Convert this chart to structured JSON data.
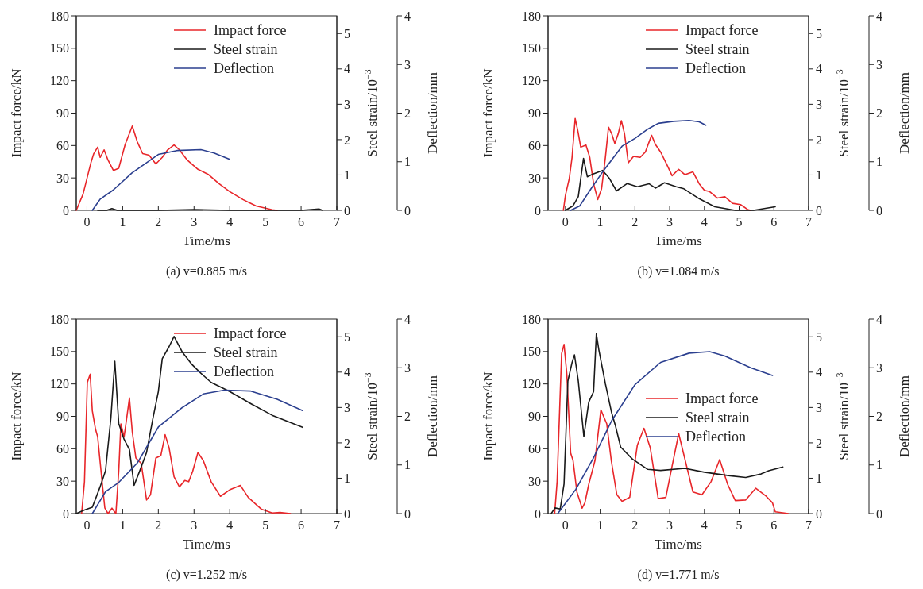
{
  "chart_data": [
    {
      "type": "line",
      "xlabel": "Time/ms",
      "ylabel": "Impact force/kN",
      "y2label": "Steel strain/10$^{−3}$",
      "y3label": "Deflection/mm",
      "xlim": [
        -0.3,
        7
      ],
      "xticks": [
        0,
        1,
        2,
        3,
        4,
        5,
        6,
        7
      ],
      "ylim": [
        0,
        180
      ],
      "yticks": [
        0,
        30,
        60,
        90,
        120,
        150,
        180
      ],
      "y2lim": [
        0,
        5.5
      ],
      "y2ticks": [
        0,
        1,
        2,
        3,
        4,
        5
      ],
      "y3lim": [
        0,
        4
      ],
      "y3ticks": [
        0,
        1,
        2,
        3,
        4
      ],
      "legend": "top right",
      "annotations": [
        "(a) v=0.885 m/s"
      ],
      "series": [
        {
          "name": "Impact force",
          "color": "#e8262a",
          "axis": "y",
          "x": [
            -0.3,
            -0.11,
            0,
            0.11,
            0.19,
            0.3,
            0.37,
            0.48,
            0.59,
            0.74,
            0.89,
            1.07,
            1.27,
            1.41,
            1.56,
            1.74,
            1.93,
            2.11,
            2.26,
            2.44,
            2.59,
            2.81,
            3.11,
            3.41,
            3.7,
            4.0,
            4.37,
            4.74,
            5.19,
            5.33
          ],
          "values": [
            0,
            15,
            29.5,
            44,
            52.5,
            58.5,
            49,
            56,
            46.5,
            37,
            39,
            61,
            78,
            63.5,
            52.5,
            51,
            43,
            49,
            56,
            60.5,
            56,
            46.5,
            38,
            33,
            24.7,
            17.4,
            10,
            4,
            0.5,
            0
          ]
        },
        {
          "name": "Steel strain",
          "color": "#1a1a1a",
          "axis": "y2",
          "x": [
            0.3,
            0.55,
            0.7,
            0.85,
            2,
            3,
            4,
            5,
            6,
            6.5,
            6.6
          ],
          "values": [
            0,
            0,
            0.05,
            0,
            0,
            0.02,
            0,
            0,
            0,
            0.04,
            0
          ]
        },
        {
          "name": "Deflection",
          "color": "#2b3f8f",
          "axis": "y3",
          "x": [
            0.15,
            0.37,
            0.74,
            1.26,
            2.0,
            2.52,
            3.19,
            3.56,
            4.0
          ],
          "values": [
            0,
            0.23,
            0.42,
            0.77,
            1.15,
            1.23,
            1.25,
            1.18,
            1.05
          ]
        }
      ]
    },
    {
      "type": "line",
      "xlabel": "Time/ms",
      "ylabel": "Impact force/kN",
      "y2label": "Steel strain/10$^{−3}$",
      "y3label": "Deflection/mm",
      "xlim": [
        -0.5,
        7
      ],
      "xticks": [
        0,
        1,
        2,
        3,
        4,
        5,
        6,
        7
      ],
      "ylim": [
        0,
        180
      ],
      "yticks": [
        0,
        30,
        60,
        90,
        120,
        150,
        180
      ],
      "y2lim": [
        0,
        5.5
      ],
      "y2ticks": [
        0,
        1,
        2,
        3,
        4,
        5
      ],
      "y3lim": [
        0,
        4
      ],
      "y3ticks": [
        0,
        1,
        2,
        3,
        4
      ],
      "legend": "top right",
      "annotations": [
        "(b) v=1.084 m/s"
      ],
      "series": [
        {
          "name": "Impact force",
          "color": "#e8262a",
          "axis": "y",
          "x": [
            -0.06,
            0,
            0.11,
            0.19,
            0.28,
            0.36,
            0.44,
            0.59,
            0.7,
            0.81,
            0.93,
            1.04,
            1.15,
            1.24,
            1.33,
            1.42,
            1.52,
            1.61,
            1.7,
            1.81,
            1.96,
            2.15,
            2.3,
            2.48,
            2.59,
            2.74,
            2.93,
            3.07,
            3.26,
            3.44,
            3.67,
            3.85,
            4.0,
            4.15,
            4.37,
            4.59,
            4.81,
            5.04,
            5.26,
            5.33
          ],
          "values": [
            0,
            14,
            29.5,
            49,
            85,
            73,
            58.5,
            60.5,
            49,
            24.7,
            10,
            20,
            49,
            77,
            71,
            62,
            71,
            83,
            71,
            44,
            50,
            49,
            54,
            69.5,
            61,
            54,
            41.6,
            32,
            38,
            33,
            35.6,
            24.7,
            18.6,
            17.4,
            11.4,
            12.6,
            6.5,
            5.3,
            0.5,
            0
          ]
        },
        {
          "name": "Steel strain",
          "color": "#1a1a1a",
          "axis": "y2",
          "x": [
            0,
            0.22,
            0.37,
            0.52,
            0.63,
            0.78,
            1.07,
            1.26,
            1.47,
            1.78,
            2.07,
            2.41,
            2.59,
            2.85,
            3.19,
            3.41,
            3.85,
            4.3,
            4.89,
            5.41,
            6.04
          ],
          "values": [
            0,
            0.13,
            0.39,
            1.47,
            0.95,
            1.02,
            1.13,
            0.91,
            0.55,
            0.76,
            0.67,
            0.75,
            0.63,
            0.78,
            0.67,
            0.61,
            0.33,
            0.1,
            0,
            0,
            0.1
          ]
        },
        {
          "name": "Deflection",
          "color": "#2b3f8f",
          "axis": "y3",
          "x": [
            0.15,
            0.41,
            0.74,
            1.11,
            1.63,
            2.0,
            2.37,
            2.67,
            3.11,
            3.56,
            3.85,
            4.04
          ],
          "values": [
            0,
            0.09,
            0.45,
            0.83,
            1.32,
            1.48,
            1.67,
            1.79,
            1.83,
            1.85,
            1.82,
            1.75
          ]
        }
      ]
    },
    {
      "type": "line",
      "xlabel": "Time/ms",
      "ylabel": "Impact force/kN",
      "y2label": "Steel strain/10$^{−3}$",
      "y3label": "Deflection/mm",
      "xlim": [
        -0.3,
        7
      ],
      "xticks": [
        0,
        1,
        2,
        3,
        4,
        5,
        6,
        7
      ],
      "ylim": [
        0,
        180
      ],
      "yticks": [
        0,
        30,
        60,
        90,
        120,
        150,
        180
      ],
      "y2lim": [
        0,
        5.5
      ],
      "y2ticks": [
        0,
        1,
        2,
        3,
        4,
        5
      ],
      "y3lim": [
        0,
        4
      ],
      "y3ticks": [
        0,
        1,
        2,
        3,
        4
      ],
      "legend": "top right",
      "annotations": [
        "(c) v=1.252 m/s"
      ],
      "series": [
        {
          "name": "Impact force",
          "color": "#e8262a",
          "axis": "y",
          "x": [
            -0.15,
            -0.07,
            0.01,
            0.09,
            0.15,
            0.24,
            0.3,
            0.41,
            0.5,
            0.59,
            0.7,
            0.81,
            0.89,
            0.95,
            1.04,
            1.11,
            1.19,
            1.27,
            1.37,
            1.52,
            1.67,
            1.78,
            1.93,
            2.07,
            2.19,
            2.3,
            2.44,
            2.59,
            2.74,
            2.85,
            2.96,
            3.11,
            3.26,
            3.48,
            3.74,
            4.0,
            4.3,
            4.52,
            4.89,
            5.19,
            5.41,
            5.7
          ],
          "values": [
            0,
            29.5,
            121.5,
            129,
            95,
            78,
            71,
            34,
            5.3,
            0,
            5,
            0,
            39,
            83,
            71,
            87.6,
            107,
            75.5,
            51.5,
            46.5,
            12.6,
            17.4,
            51.5,
            53.7,
            73,
            61,
            34,
            24.7,
            30.7,
            29.5,
            39,
            56.6,
            49,
            29.5,
            16,
            22,
            26,
            15,
            4,
            0.5,
            1,
            0
          ]
        },
        {
          "name": "Steel strain",
          "color": "#1a1a1a",
          "axis": "y2",
          "x": [
            -0.3,
            -0.07,
            0.15,
            0.37,
            0.52,
            0.67,
            0.78,
            0.89,
            1.04,
            1.19,
            1.32,
            1.48,
            1.67,
            1.85,
            2.0,
            2.11,
            2.3,
            2.44,
            2.67,
            2.93,
            3.19,
            3.48,
            4.0,
            4.59,
            5.19,
            6.04
          ],
          "values": [
            0,
            0.1,
            0.18,
            0.76,
            1.21,
            2.7,
            4.31,
            2.55,
            2.1,
            1.81,
            0.8,
            1.21,
            1.73,
            2.7,
            3.45,
            4.38,
            4.72,
            5.01,
            4.57,
            4.23,
            3.97,
            3.71,
            3.45,
            3.11,
            2.78,
            2.44
          ]
        },
        {
          "name": "Deflection",
          "color": "#2b3f8f",
          "axis": "y3",
          "x": [
            0.15,
            0.52,
            0.89,
            1.41,
            2.0,
            2.67,
            3.26,
            3.85,
            4.59,
            5.33,
            6.04
          ],
          "values": [
            0,
            0.45,
            0.64,
            1.04,
            1.78,
            2.18,
            2.46,
            2.54,
            2.52,
            2.35,
            2.12
          ]
        }
      ]
    },
    {
      "type": "line",
      "xlabel": "Time/ms",
      "ylabel": "Impact force/kN",
      "y2label": "Steel strain/10$^{−3}$",
      "y3label": "Deflection/mm",
      "xlim": [
        -0.5,
        7
      ],
      "xticks": [
        0,
        1,
        2,
        3,
        4,
        5,
        6,
        7
      ],
      "ylim": [
        0,
        180
      ],
      "yticks": [
        0,
        30,
        60,
        90,
        120,
        150,
        180
      ],
      "y2lim": [
        0,
        5.5
      ],
      "y2ticks": [
        0,
        1,
        2,
        3,
        4,
        5
      ],
      "y3lim": [
        0,
        4
      ],
      "y3ticks": [
        0,
        1,
        2,
        3,
        4
      ],
      "legend": "right",
      "annotations": [
        "(d) v=1.771 m/s"
      ],
      "series": [
        {
          "name": "Impact force",
          "color": "#e8262a",
          "axis": "y",
          "x": [
            -0.31,
            -0.24,
            -0.11,
            -0.04,
            0.04,
            0.15,
            0.22,
            0.33,
            0.48,
            0.56,
            0.67,
            0.85,
            1.02,
            1.19,
            1.32,
            1.48,
            1.63,
            1.85,
            2.07,
            2.26,
            2.44,
            2.67,
            2.89,
            3.07,
            3.26,
            3.48,
            3.67,
            3.93,
            4.19,
            4.44,
            4.67,
            4.89,
            5.19,
            5.48,
            5.78,
            5.96,
            6.04,
            6.3,
            6.41
          ],
          "values": [
            0,
            29.5,
            148,
            156.6,
            129,
            56,
            49,
            20,
            5,
            10,
            27,
            49,
            96,
            83,
            49,
            17.4,
            11.4,
            15,
            63.4,
            79,
            61,
            14,
            15,
            44,
            74,
            45,
            20,
            17.4,
            29.5,
            50,
            27,
            12,
            12.6,
            23.5,
            16,
            10,
            1.7,
            0.5,
            0
          ]
        },
        {
          "name": "Steel strain",
          "color": "#1a1a1a",
          "axis": "y2",
          "x": [
            -0.41,
            -0.3,
            -0.15,
            -0.04,
            0.07,
            0.19,
            0.26,
            0.37,
            0.53,
            0.67,
            0.81,
            0.89,
            0.96,
            1.15,
            1.33,
            1.44,
            1.59,
            1.93,
            2.37,
            2.74,
            3.44,
            4.0,
            4.74,
            5.19,
            5.63,
            5.85,
            6.26
          ],
          "values": [
            0,
            0.16,
            0.13,
            0.84,
            3.75,
            4.27,
            4.49,
            3.75,
            2.18,
            3.15,
            3.45,
            5.09,
            4.64,
            3.67,
            2.85,
            2.48,
            1.88,
            1.54,
            1.25,
            1.22,
            1.28,
            1.17,
            1.07,
            1.02,
            1.12,
            1.21,
            1.32
          ]
        },
        {
          "name": "Deflection",
          "color": "#2b3f8f",
          "axis": "y3",
          "x": [
            -0.22,
            0.3,
            0.81,
            1.33,
            2.0,
            2.74,
            3.56,
            4.15,
            4.59,
            5.33,
            5.96
          ],
          "values": [
            0,
            0.5,
            1.15,
            1.91,
            2.65,
            3.11,
            3.3,
            3.33,
            3.24,
            3.0,
            2.84
          ]
        }
      ]
    }
  ]
}
